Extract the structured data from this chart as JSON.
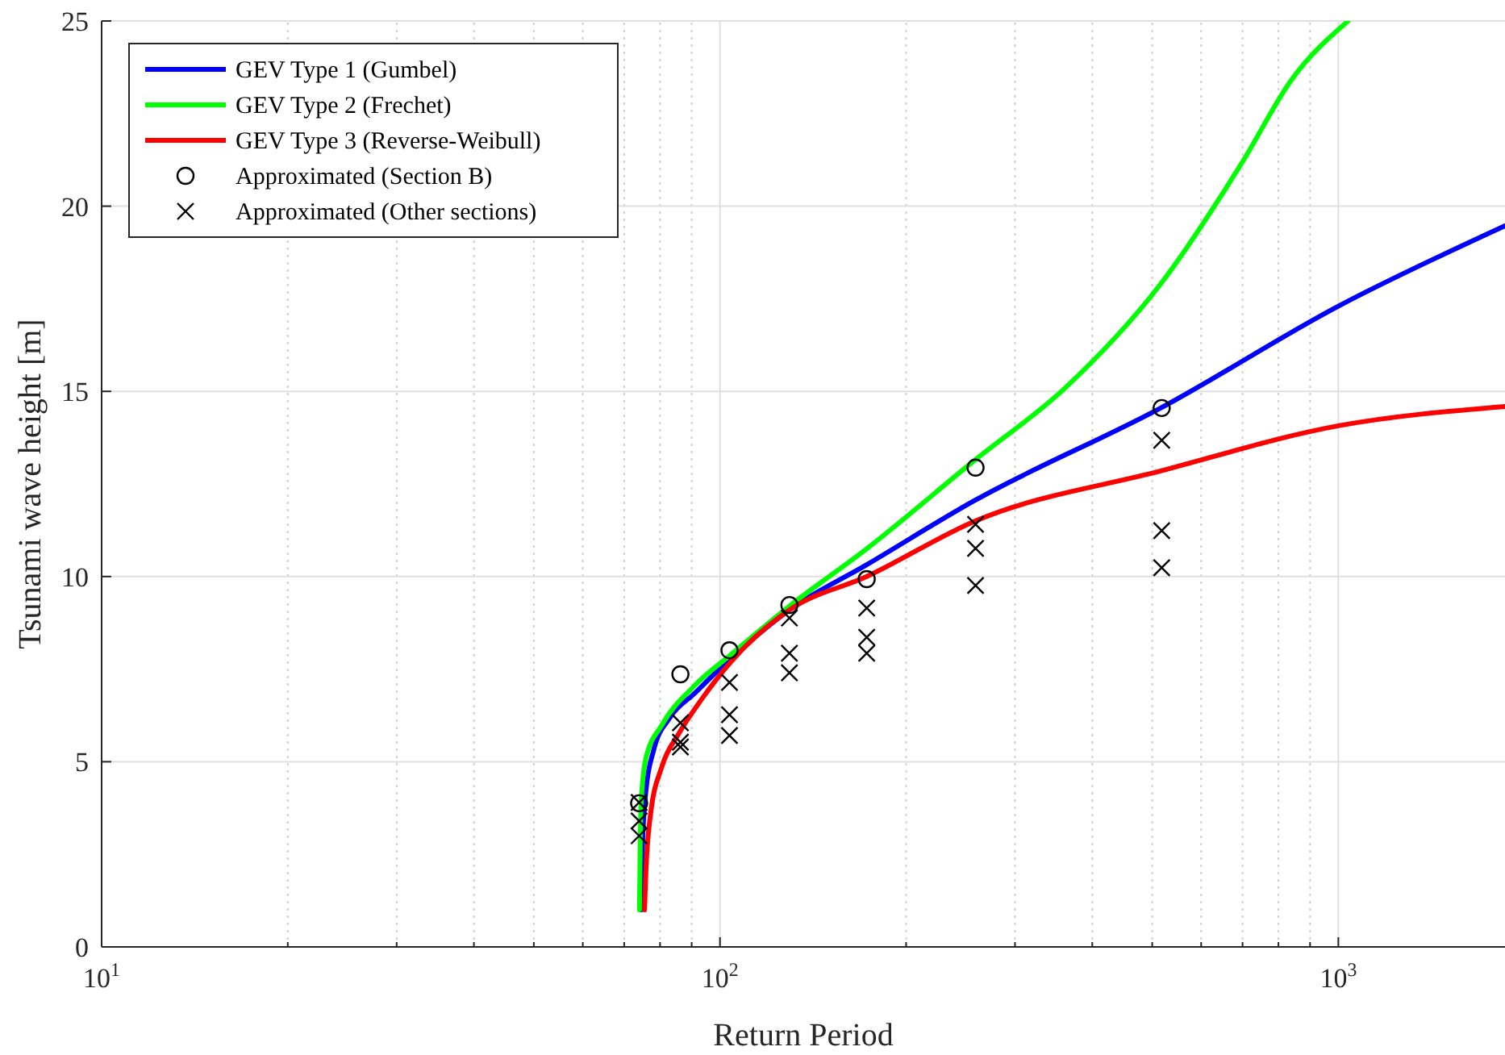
{
  "chart_data": {
    "type": "line",
    "xlabel": "Return Period",
    "ylabel": "Tsunami wave height [m]",
    "log": "x",
    "xlim": [
      10,
      1860
    ],
    "ylim": [
      0,
      25
    ],
    "xticks": [
      {
        "value": 10,
        "label": "10$^{1}$"
      },
      {
        "value": 100,
        "label": "10$^{2}$"
      },
      {
        "value": 1000,
        "label": "10$^{3}$"
      }
    ],
    "yticks": [
      0,
      5,
      10,
      15,
      20,
      25
    ],
    "grid": true,
    "legend": "top left",
    "series": [
      {
        "name": "GEV Type 1 (Gumbel)",
        "color": "#0000ff",
        "x": [
          74.5,
          75.0,
          75.9,
          78.1,
          82.9,
          90.9,
          104.3,
          129.5,
          172.7,
          258.6,
          516,
          1000,
          1860
        ],
        "values": [
          1.0,
          2.92,
          4.22,
          5.31,
          6.18,
          6.84,
          7.8,
          9.1,
          10.32,
          12.06,
          14.55,
          17.3,
          19.47
        ]
      },
      {
        "name": "GEV Type 2 (Frechet)",
        "color": "#00ff00",
        "x": [
          74.1,
          74.5,
          75.9,
          80.6,
          90.9,
          104.3,
          129.5,
          172.7,
          258.6,
          362,
          516,
          700,
          839,
          1037
        ],
        "values": [
          1.0,
          3.8,
          5.1,
          6.0,
          7.05,
          7.9,
          9.2,
          10.75,
          13.15,
          15.1,
          17.9,
          21.2,
          23.4,
          25
        ]
      },
      {
        "name": "GEV Type 3 (Reverse-Weibull)",
        "color": "#ff0000",
        "x": [
          75.5,
          75.9,
          77.2,
          80.6,
          85.7,
          93.6,
          104.3,
          129.5,
          172.7,
          258.6,
          516,
          1000,
          1860
        ],
        "values": [
          1.0,
          2.05,
          3.57,
          4.88,
          5.75,
          6.71,
          7.71,
          9.1,
          10.0,
          11.5,
          12.85,
          14.07,
          14.59
        ]
      },
      {
        "name": "Approximated (Section B)",
        "type": "scatter",
        "color": "#000000",
        "marker": "circle",
        "x": [
          74,
          86.3,
          103.6,
          129.5,
          172.7,
          259,
          518
        ],
        "values": [
          3.88,
          7.36,
          8.01,
          9.23,
          9.93,
          12.94,
          14.55
        ]
      },
      {
        "name": "Approximated (Other sections)",
        "type": "scatter",
        "color": "#000000",
        "marker": "cross",
        "x": [
          74,
          74,
          74,
          86.3,
          86.3,
          86.3,
          103.6,
          103.6,
          103.6,
          129.5,
          129.5,
          129.5,
          172.7,
          172.7,
          172.7,
          259,
          259,
          259,
          518,
          518,
          518
        ],
        "values": [
          3.9,
          3.4,
          3.0,
          6.05,
          5.53,
          5.4,
          7.14,
          6.27,
          5.71,
          8.88,
          7.93,
          7.4,
          9.15,
          8.36,
          7.93,
          11.41,
          10.76,
          9.76,
          13.68,
          11.24,
          10.24
        ]
      }
    ]
  }
}
